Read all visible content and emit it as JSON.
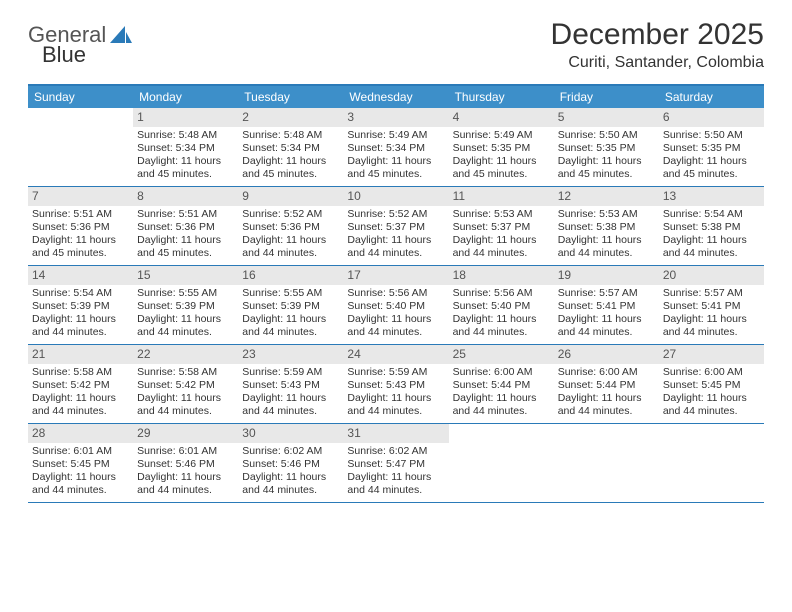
{
  "brand": {
    "word1": "General",
    "word2": "Blue"
  },
  "title": "December 2025",
  "location": "Curiti, Santander, Colombia",
  "colors": {
    "header_bg": "#3d8fc9",
    "border": "#2a7ab8",
    "daynum_bg": "#e8e8e8",
    "text": "#333333",
    "white": "#ffffff"
  },
  "weekdays": [
    "Sunday",
    "Monday",
    "Tuesday",
    "Wednesday",
    "Thursday",
    "Friday",
    "Saturday"
  ],
  "weeks": [
    [
      null,
      {
        "n": "1",
        "sr": "Sunrise: 5:48 AM",
        "ss": "Sunset: 5:34 PM",
        "dl": "Daylight: 11 hours and 45 minutes."
      },
      {
        "n": "2",
        "sr": "Sunrise: 5:48 AM",
        "ss": "Sunset: 5:34 PM",
        "dl": "Daylight: 11 hours and 45 minutes."
      },
      {
        "n": "3",
        "sr": "Sunrise: 5:49 AM",
        "ss": "Sunset: 5:34 PM",
        "dl": "Daylight: 11 hours and 45 minutes."
      },
      {
        "n": "4",
        "sr": "Sunrise: 5:49 AM",
        "ss": "Sunset: 5:35 PM",
        "dl": "Daylight: 11 hours and 45 minutes."
      },
      {
        "n": "5",
        "sr": "Sunrise: 5:50 AM",
        "ss": "Sunset: 5:35 PM",
        "dl": "Daylight: 11 hours and 45 minutes."
      },
      {
        "n": "6",
        "sr": "Sunrise: 5:50 AM",
        "ss": "Sunset: 5:35 PM",
        "dl": "Daylight: 11 hours and 45 minutes."
      }
    ],
    [
      {
        "n": "7",
        "sr": "Sunrise: 5:51 AM",
        "ss": "Sunset: 5:36 PM",
        "dl": "Daylight: 11 hours and 45 minutes."
      },
      {
        "n": "8",
        "sr": "Sunrise: 5:51 AM",
        "ss": "Sunset: 5:36 PM",
        "dl": "Daylight: 11 hours and 45 minutes."
      },
      {
        "n": "9",
        "sr": "Sunrise: 5:52 AM",
        "ss": "Sunset: 5:36 PM",
        "dl": "Daylight: 11 hours and 44 minutes."
      },
      {
        "n": "10",
        "sr": "Sunrise: 5:52 AM",
        "ss": "Sunset: 5:37 PM",
        "dl": "Daylight: 11 hours and 44 minutes."
      },
      {
        "n": "11",
        "sr": "Sunrise: 5:53 AM",
        "ss": "Sunset: 5:37 PM",
        "dl": "Daylight: 11 hours and 44 minutes."
      },
      {
        "n": "12",
        "sr": "Sunrise: 5:53 AM",
        "ss": "Sunset: 5:38 PM",
        "dl": "Daylight: 11 hours and 44 minutes."
      },
      {
        "n": "13",
        "sr": "Sunrise: 5:54 AM",
        "ss": "Sunset: 5:38 PM",
        "dl": "Daylight: 11 hours and 44 minutes."
      }
    ],
    [
      {
        "n": "14",
        "sr": "Sunrise: 5:54 AM",
        "ss": "Sunset: 5:39 PM",
        "dl": "Daylight: 11 hours and 44 minutes."
      },
      {
        "n": "15",
        "sr": "Sunrise: 5:55 AM",
        "ss": "Sunset: 5:39 PM",
        "dl": "Daylight: 11 hours and 44 minutes."
      },
      {
        "n": "16",
        "sr": "Sunrise: 5:55 AM",
        "ss": "Sunset: 5:39 PM",
        "dl": "Daylight: 11 hours and 44 minutes."
      },
      {
        "n": "17",
        "sr": "Sunrise: 5:56 AM",
        "ss": "Sunset: 5:40 PM",
        "dl": "Daylight: 11 hours and 44 minutes."
      },
      {
        "n": "18",
        "sr": "Sunrise: 5:56 AM",
        "ss": "Sunset: 5:40 PM",
        "dl": "Daylight: 11 hours and 44 minutes."
      },
      {
        "n": "19",
        "sr": "Sunrise: 5:57 AM",
        "ss": "Sunset: 5:41 PM",
        "dl": "Daylight: 11 hours and 44 minutes."
      },
      {
        "n": "20",
        "sr": "Sunrise: 5:57 AM",
        "ss": "Sunset: 5:41 PM",
        "dl": "Daylight: 11 hours and 44 minutes."
      }
    ],
    [
      {
        "n": "21",
        "sr": "Sunrise: 5:58 AM",
        "ss": "Sunset: 5:42 PM",
        "dl": "Daylight: 11 hours and 44 minutes."
      },
      {
        "n": "22",
        "sr": "Sunrise: 5:58 AM",
        "ss": "Sunset: 5:42 PM",
        "dl": "Daylight: 11 hours and 44 minutes."
      },
      {
        "n": "23",
        "sr": "Sunrise: 5:59 AM",
        "ss": "Sunset: 5:43 PM",
        "dl": "Daylight: 11 hours and 44 minutes."
      },
      {
        "n": "24",
        "sr": "Sunrise: 5:59 AM",
        "ss": "Sunset: 5:43 PM",
        "dl": "Daylight: 11 hours and 44 minutes."
      },
      {
        "n": "25",
        "sr": "Sunrise: 6:00 AM",
        "ss": "Sunset: 5:44 PM",
        "dl": "Daylight: 11 hours and 44 minutes."
      },
      {
        "n": "26",
        "sr": "Sunrise: 6:00 AM",
        "ss": "Sunset: 5:44 PM",
        "dl": "Daylight: 11 hours and 44 minutes."
      },
      {
        "n": "27",
        "sr": "Sunrise: 6:00 AM",
        "ss": "Sunset: 5:45 PM",
        "dl": "Daylight: 11 hours and 44 minutes."
      }
    ],
    [
      {
        "n": "28",
        "sr": "Sunrise: 6:01 AM",
        "ss": "Sunset: 5:45 PM",
        "dl": "Daylight: 11 hours and 44 minutes."
      },
      {
        "n": "29",
        "sr": "Sunrise: 6:01 AM",
        "ss": "Sunset: 5:46 PM",
        "dl": "Daylight: 11 hours and 44 minutes."
      },
      {
        "n": "30",
        "sr": "Sunrise: 6:02 AM",
        "ss": "Sunset: 5:46 PM",
        "dl": "Daylight: 11 hours and 44 minutes."
      },
      {
        "n": "31",
        "sr": "Sunrise: 6:02 AM",
        "ss": "Sunset: 5:47 PM",
        "dl": "Daylight: 11 hours and 44 minutes."
      },
      null,
      null,
      null
    ]
  ]
}
